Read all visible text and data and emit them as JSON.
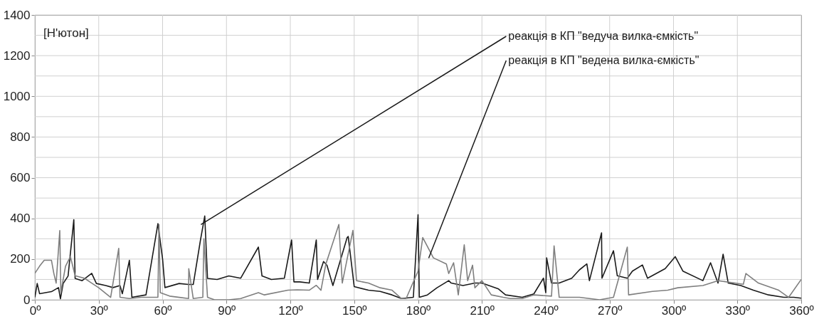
{
  "chart_data": {
    "type": "line",
    "ylabel": "[Н'ютон]",
    "xlim": [
      0,
      360
    ],
    "xticks": [
      {
        "value": 0,
        "label": "0º"
      },
      {
        "value": 30,
        "label": "30º"
      },
      {
        "value": 60,
        "label": "60º"
      },
      {
        "value": 90,
        "label": "90º"
      },
      {
        "value": 120,
        "label": "120º"
      },
      {
        "value": 150,
        "label": "150º"
      },
      {
        "value": 180,
        "label": "180º"
      },
      {
        "value": 210,
        "label": "210º"
      },
      {
        "value": 240,
        "label": "240º"
      },
      {
        "value": 270,
        "label": "270º"
      },
      {
        "value": 300,
        "label": "300º"
      },
      {
        "value": 330,
        "label": "330º"
      },
      {
        "value": 360,
        "label": "360º"
      }
    ],
    "ylim": [
      0,
      1400
    ],
    "yticks": [
      0,
      {
        "value": 100,
        "label": null
      },
      200,
      {
        "value": 300,
        "label": null
      },
      400,
      {
        "value": 500,
        "label": null
      },
      600,
      {
        "value": 700,
        "label": null
      },
      800,
      {
        "value": 900,
        "label": null
      },
      1000,
      {
        "value": 1100,
        "label": null
      },
      1200,
      {
        "value": 1300,
        "label": null
      },
      1400
    ],
    "grid": true,
    "series": [
      {
        "color": "#1a1a1a",
        "x": [
          0,
          1.1,
          2.2,
          7.8,
          11.1,
          12,
          13.3,
          15.6,
          18.3,
          18.9,
          22.2,
          26.7,
          28.9,
          33.3,
          36.7,
          40,
          41.1,
          44.4,
          45.6,
          52.2,
          57.8,
          60,
          61.1,
          67.8,
          72.2,
          74.4,
          77.8,
          79.8,
          81.1,
          85.6,
          91.1,
          96.7,
          105,
          106.7,
          111.1,
          117.2,
          120.6,
          121.7,
          124.4,
          128.9,
          132.2,
          132.8,
          135.6,
          137.2,
          140,
          146.7,
          147.2,
          150,
          156.7,
          162.2,
          167.8,
          172.2,
          177.8,
          180,
          180.6,
          184.4,
          188.9,
          194.4,
          195.6,
          201.1,
          206.7,
          210,
          213.3,
          217.8,
          221.1,
          228.9,
          234.4,
          238.9,
          240,
          240.4,
          242.7,
          246.3,
          252.2,
          255.8,
          259.3,
          260.5,
          266.2,
          266.4,
          271.8,
          273.6,
          278.3,
          280.7,
          285.4,
          287.8,
          296.1,
          300.8,
          304.4,
          313.8,
          317.4,
          320.9,
          323.3,
          325.7,
          331.6,
          337.5,
          344.6,
          351.8,
          356.5,
          360
        ],
        "values": [
          12,
          80,
          30,
          40,
          60,
          5,
          80,
          117,
          394,
          105,
          94,
          130,
          80,
          70,
          60,
          70,
          30,
          194,
          12,
          24,
          374,
          200,
          60,
          80,
          75,
          75,
          294,
          412,
          105,
          100,
          117,
          106,
          259,
          117,
          100,
          106,
          294,
          88,
          88,
          82,
          294,
          100,
          188,
          170,
          70,
          306,
          311,
          65,
          47,
          41,
          24,
          6,
          12,
          418,
          12,
          24,
          59,
          94,
          82,
          70,
          82,
          82,
          70,
          53,
          24,
          12,
          29,
          106,
          35,
          206,
          82,
          82,
          106,
          147,
          176,
          94,
          329,
          106,
          241,
          118,
          106,
          141,
          171,
          106,
          153,
          212,
          141,
          94,
          182,
          82,
          224,
          82,
          70,
          47,
          24,
          12,
          12,
          8
        ]
      },
      {
        "color": "#7f7f7f",
        "x": [
          0,
          2.2,
          4.4,
          7.8,
          8.9,
          10,
          11.7,
          12.2,
          14.4,
          16.7,
          18.9,
          23.3,
          26.7,
          30,
          35.6,
          39.4,
          40,
          44.4,
          50,
          57.8,
          58.3,
          58.9,
          63.3,
          72.2,
          72.3,
          74.4,
          78.9,
          79.4,
          81.1,
          84.4,
          91.1,
          96.7,
          105,
          107.8,
          118.9,
          123.3,
          128.9,
          132.2,
          134.4,
          136.7,
          142.8,
          144.4,
          149.4,
          151.1,
          156.7,
          162.2,
          167.8,
          172.2,
          174.4,
          180,
          182.2,
          187.2,
          193.3,
          194.4,
          196.7,
          198.9,
          201.7,
          203.3,
          205.6,
          206.7,
          210,
          214.4,
          220,
          223.3,
          228.9,
          234.4,
          242.7,
          243.9,
          246.3,
          255.8,
          265.3,
          271.8,
          278.3,
          278.9,
          290.1,
          297.3,
          302,
          313.8,
          320.9,
          332.8,
          334,
          339.9,
          349.4,
          354.1,
          360
        ],
        "values": [
          130,
          165,
          194,
          194,
          130,
          82,
          340,
          35,
          165,
          212,
          118,
          106,
          82,
          59,
          12,
          253,
          12,
          6,
          12,
          12,
          370,
          35,
          18,
          6,
          153,
          6,
          12,
          300,
          12,
          0,
          0,
          6,
          35,
          24,
          47,
          49,
          47,
          71,
          47,
          176,
          370,
          82,
          341,
          94,
          82,
          59,
          47,
          6,
          6,
          141,
          306,
          206,
          176,
          129,
          182,
          24,
          270,
          94,
          170,
          59,
          94,
          24,
          12,
          6,
          6,
          24,
          18,
          265,
          12,
          12,
          0,
          12,
          259,
          24,
          41,
          47,
          59,
          70,
          94,
          76,
          129,
          82,
          47,
          12,
          100
        ]
      }
    ],
    "annotations": [
      {
        "text": "реакція в КП \"ведуча вилка-ємкість\"",
        "x": 78,
        "y": 370
      },
      {
        "text": "реакція в КП \"ведена вилка-ємкість\"",
        "x": 185,
        "y": 205
      }
    ]
  }
}
